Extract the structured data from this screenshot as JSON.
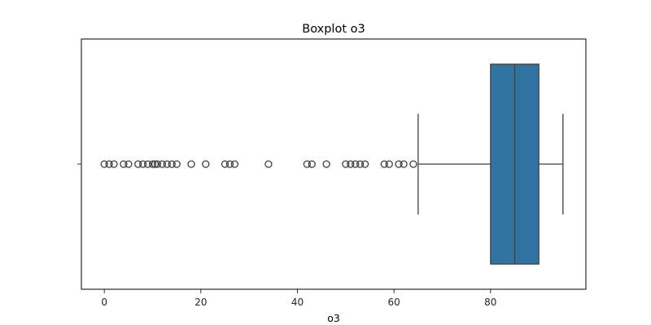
{
  "chart_data": {
    "type": "boxplot",
    "orientation": "horizontal",
    "title": "Boxplot o3",
    "xlabel": "o3",
    "ylabel": "",
    "xlim": [
      -4.75,
      99.75
    ],
    "xticks": [
      0,
      20,
      40,
      60,
      80
    ],
    "xtick_labels": [
      "0",
      "20",
      "40",
      "60",
      "80"
    ],
    "grid": false,
    "box": {
      "whisker_low": 65,
      "q1": 80,
      "median": 85,
      "q3": 90,
      "whisker_high": 95,
      "color": "#3274a1"
    },
    "outliers": [
      0,
      1,
      2,
      4,
      5,
      7,
      8,
      9,
      10,
      10.5,
      11,
      12,
      13,
      14,
      15,
      18,
      21,
      25,
      26,
      27,
      34,
      42,
      43,
      46,
      50,
      51,
      52,
      53,
      54,
      58,
      59,
      61,
      62,
      64
    ]
  }
}
